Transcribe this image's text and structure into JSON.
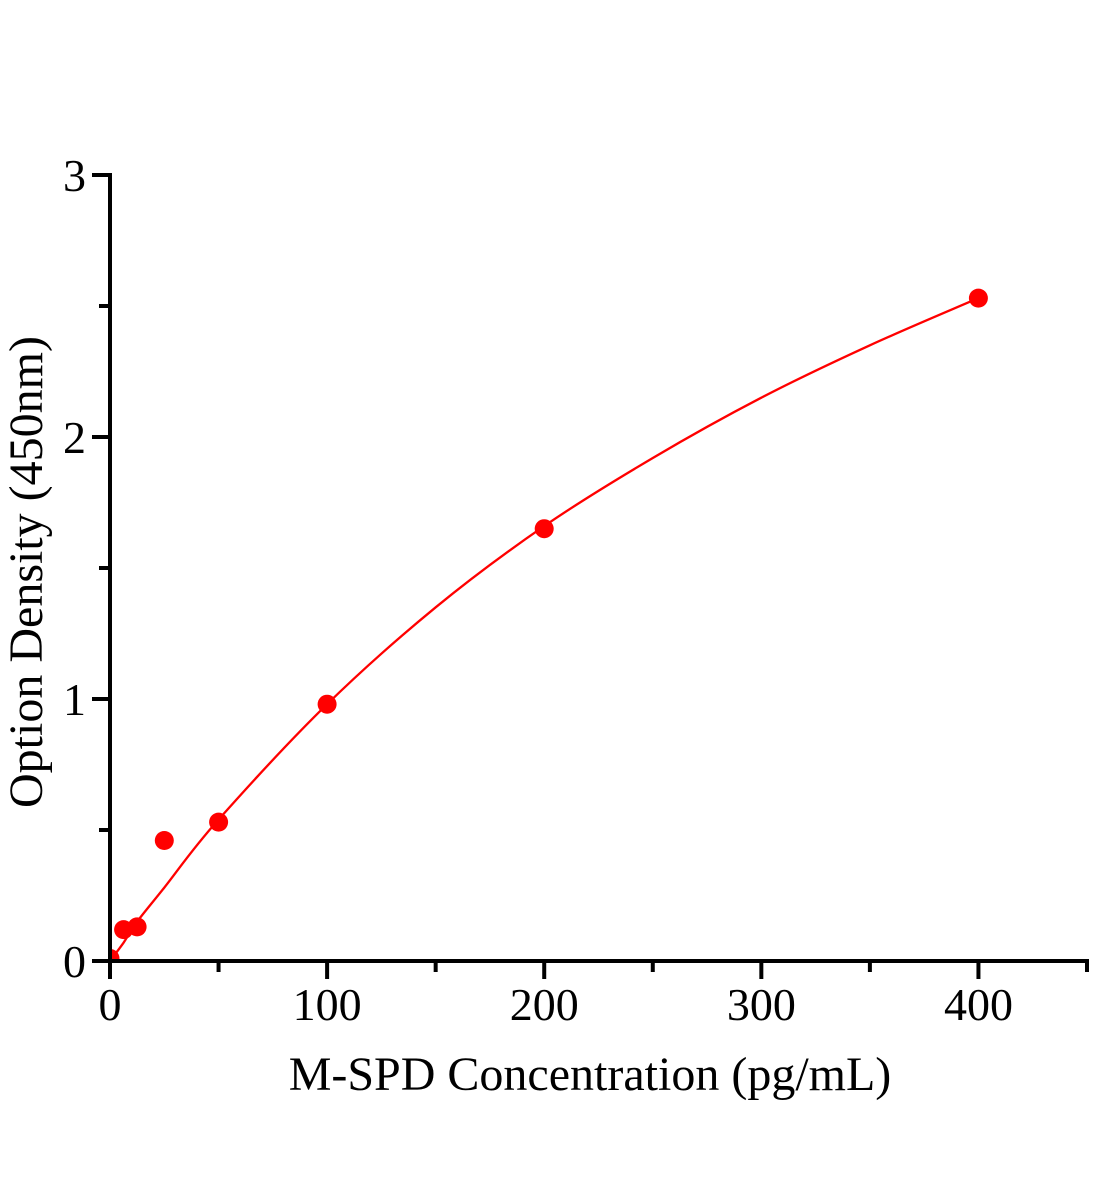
{
  "figure": {
    "background_color": "#ffffff",
    "axis_color": "#000000",
    "text_color": "#000000",
    "accent_color": "#ff0000"
  },
  "chart_data": {
    "type": "scatter",
    "title": "",
    "xlabel": "M-SPD Concentration（pg/mL）",
    "ylabel": "Option Density（450nm）",
    "xlim": [
      0,
      450
    ],
    "ylim": [
      0,
      3
    ],
    "x_major_ticks": [
      0,
      100,
      200,
      300,
      400
    ],
    "x_minor_ticks": [
      50,
      150,
      250,
      350,
      450
    ],
    "y_major_ticks": [
      0,
      1,
      2,
      3
    ],
    "y_minor_ticks": [
      0.5,
      1.5,
      2.5
    ],
    "grid": false,
    "legend": null,
    "axis_color": "#000000",
    "tick_label_color": "#000000",
    "series": [
      {
        "kind": "scatter-with-fit-curve",
        "marker_color": "#ff0000",
        "line_color": "#ff0000",
        "points": [
          {
            "x": 0,
            "y": 0.01
          },
          {
            "x": 6.25,
            "y": 0.12
          },
          {
            "x": 12.5,
            "y": 0.13
          },
          {
            "x": 25,
            "y": 0.46
          },
          {
            "x": 50,
            "y": 0.53
          },
          {
            "x": 100,
            "y": 0.98
          },
          {
            "x": 200,
            "y": 1.65
          },
          {
            "x": 400,
            "y": 2.53
          }
        ],
        "fit_curve": [
          {
            "x": 0,
            "y": 0.0
          },
          {
            "x": 6.25,
            "y": 0.07
          },
          {
            "x": 12.5,
            "y": 0.15
          },
          {
            "x": 25,
            "y": 0.28
          },
          {
            "x": 50,
            "y": 0.54
          },
          {
            "x": 100,
            "y": 0.98
          },
          {
            "x": 150,
            "y": 1.35
          },
          {
            "x": 200,
            "y": 1.66
          },
          {
            "x": 250,
            "y": 1.92
          },
          {
            "x": 300,
            "y": 2.15
          },
          {
            "x": 350,
            "y": 2.35
          },
          {
            "x": 400,
            "y": 2.53
          }
        ]
      }
    ]
  }
}
